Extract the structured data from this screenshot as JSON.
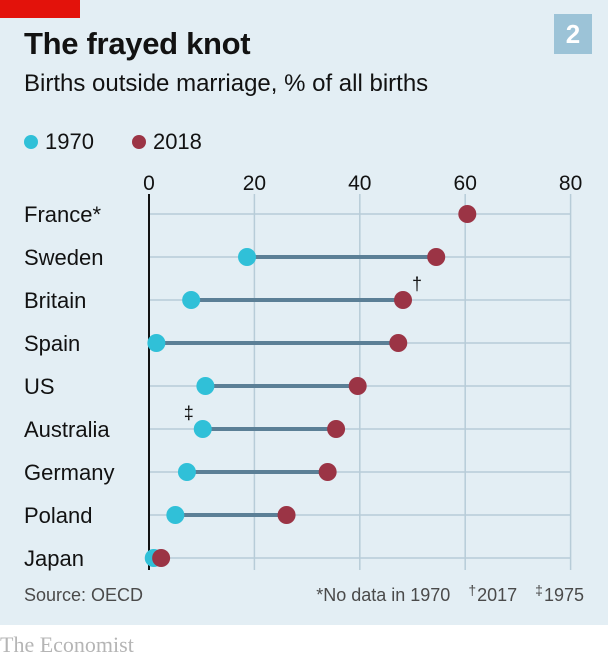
{
  "header": {
    "title": "The frayed knot",
    "subtitle": "Births outside marriage, % of all births",
    "chart_number": "2"
  },
  "colors": {
    "series_1970": "#30c0d8",
    "series_2018": "#9b3445",
    "connector": "#5b7f96",
    "grid": "#b7ccd8",
    "axis": "#121212",
    "background": "#e3eef4"
  },
  "chart_data": {
    "type": "dumbbell",
    "title": "The frayed knot",
    "subtitle": "Births outside marriage, % of all births",
    "xlim": [
      0,
      80
    ],
    "xticks": [
      0,
      20,
      40,
      60,
      80
    ],
    "grid": true,
    "legend_placement": "top-left",
    "series": [
      {
        "name": "1970",
        "color": "#30c0d8"
      },
      {
        "name": "2018",
        "color": "#9b3445"
      }
    ],
    "categories": [
      "France*",
      "Sweden",
      "Britain",
      "Spain",
      "US",
      "Australia",
      "Germany",
      "Poland",
      "Japan"
    ],
    "rows": [
      {
        "label": "France*",
        "v1970": null,
        "v2018": 60.4,
        "mark": "",
        "mark_on": ""
      },
      {
        "label": "Sweden",
        "v1970": 18.6,
        "v2018": 54.5,
        "mark": "",
        "mark_on": ""
      },
      {
        "label": "Britain",
        "v1970": 8.0,
        "v2018": 48.2,
        "mark": "†",
        "mark_on": "2018"
      },
      {
        "label": "Spain",
        "v1970": 1.4,
        "v2018": 47.3,
        "mark": "",
        "mark_on": ""
      },
      {
        "label": "US",
        "v1970": 10.7,
        "v2018": 39.6,
        "mark": "",
        "mark_on": ""
      },
      {
        "label": "Australia",
        "v1970": 10.2,
        "v2018": 35.5,
        "mark": "‡",
        "mark_on": "1970"
      },
      {
        "label": "Germany",
        "v1970": 7.2,
        "v2018": 33.9,
        "mark": "",
        "mark_on": ""
      },
      {
        "label": "Poland",
        "v1970": 5.0,
        "v2018": 26.1,
        "mark": "",
        "mark_on": ""
      },
      {
        "label": "Japan",
        "v1970": 0.9,
        "v2018": 2.3,
        "mark": "",
        "mark_on": ""
      }
    ]
  },
  "footer": {
    "source": "Source: OECD",
    "note_no_data": "*No data in 1970",
    "note_dagger_symbol": "†",
    "note_dagger_text": "2017",
    "note_ddagger_symbol": "‡",
    "note_ddagger_text": "1975",
    "brand": "The Economist"
  }
}
